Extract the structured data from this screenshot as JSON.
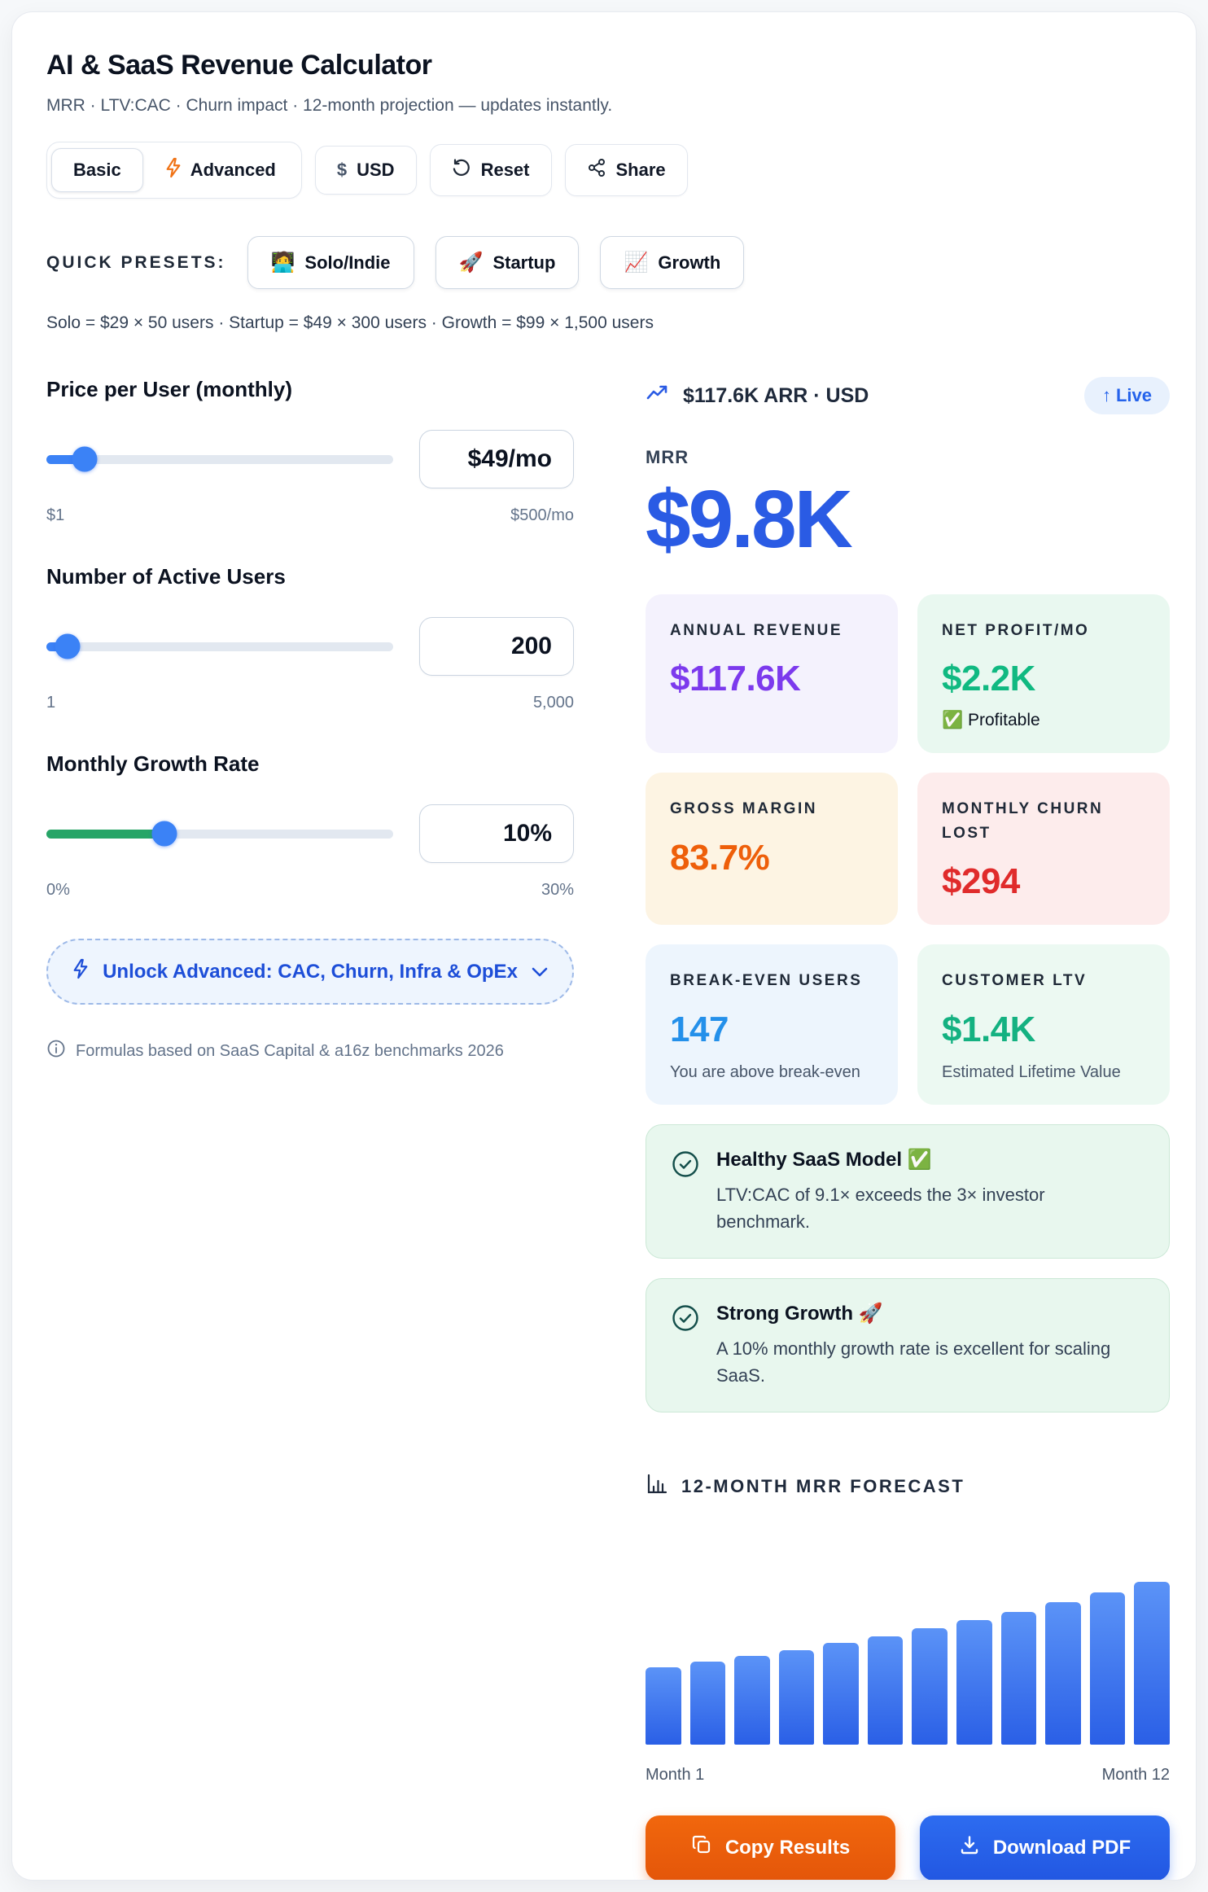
{
  "header": {
    "title": "AI & SaaS Revenue Calculator",
    "subtitle": "MRR · LTV:CAC · Churn impact · 12-month projection — updates instantly."
  },
  "toolbar": {
    "basic_label": "Basic",
    "advanced_label": "Advanced",
    "currency_symbol": "$",
    "currency_label": "USD",
    "reset_label": "Reset",
    "share_label": "Share"
  },
  "presets": {
    "label": "QUICK PRESETS:",
    "items": [
      {
        "emoji": "🧑‍💻",
        "label": "Solo/Indie"
      },
      {
        "emoji": "🚀",
        "label": "Startup"
      },
      {
        "emoji": "📈",
        "label": "Growth"
      }
    ],
    "caption": "Solo = $29 × 50 users · Startup = $49 × 300 users · Growth = $99 × 1,500 users"
  },
  "inputs": {
    "price": {
      "label": "Price per User (monthly)",
      "value": "$49/mo",
      "min": "$1",
      "max": "$500/mo",
      "percent": 11,
      "color": "#3b82f6"
    },
    "users": {
      "label": "Number of Active Users",
      "value": "200",
      "min": "1",
      "max": "5,000",
      "percent": 6,
      "color": "#3b82f6"
    },
    "growth": {
      "label": "Monthly Growth Rate",
      "value": "10%",
      "min": "0%",
      "max": "30%",
      "percent": 34,
      "color": "#27a567"
    }
  },
  "advanced_unlock": {
    "label": "Unlock Advanced: CAC, Churn, Infra & OpEx"
  },
  "footnote": "Formulas based on SaaS Capital & a16z benchmarks 2026",
  "results": {
    "arr_line": "$117.6K ARR · USD",
    "live_badge": {
      "arrow": "↑",
      "label": "Live"
    },
    "mrr_label": "MRR",
    "mrr_value": "$9.8K",
    "cards": [
      {
        "label": "ANNUAL REVENUE",
        "value": "$117.6K",
        "accent": "#7c3aed",
        "bg": "#f4f2fd"
      },
      {
        "label": "NET PROFIT/MO",
        "value": "$2.2K",
        "badge": "✅ Profitable",
        "accent": "#10b981",
        "bg": "#e9f8f0"
      },
      {
        "label": "GROSS MARGIN",
        "value": "83.7%",
        "accent": "#ee5f0a",
        "bg": "#fdf4e3"
      },
      {
        "label": "MONTHLY CHURN LOST",
        "value": "$294",
        "accent": "#e02b2b",
        "bg": "#fdecec"
      },
      {
        "label": "BREAK-EVEN USERS",
        "value": "147",
        "caption": "You are above break-even",
        "accent": "#2490ea",
        "bg": "#edf5fd"
      },
      {
        "label": "CUSTOMER LTV",
        "value": "$1.4K",
        "caption": "Estimated Lifetime Value",
        "accent": "#14b181",
        "bg": "#ecf9f2"
      }
    ],
    "insights": [
      {
        "title": "Healthy SaaS Model",
        "emoji": "✅",
        "body": "LTV:CAC of 9.1× exceeds the 3× investor benchmark."
      },
      {
        "title": "Strong Growth",
        "emoji": "🚀",
        "body": "A 10% monthly growth rate is excellent for scaling SaaS."
      }
    ]
  },
  "chart_data": {
    "type": "bar",
    "title": "12-MONTH MRR FORECAST",
    "categories": [
      "Month 1",
      "Month 2",
      "Month 3",
      "Month 4",
      "Month 5",
      "Month 6",
      "Month 7",
      "Month 8",
      "Month 9",
      "Month 10",
      "Month 11",
      "Month 12"
    ],
    "values": [
      9800,
      10490,
      11220,
      12010,
      12850,
      13750,
      14710,
      15740,
      16840,
      18020,
      19280,
      20630
    ],
    "xlabel_left": "Month 1",
    "xlabel_right": "Month 12",
    "ylim": [
      0,
      20630
    ],
    "grid": false,
    "legend": false,
    "bar_color_top": "#5b93f7",
    "bar_color_bottom": "#2a5fe6"
  },
  "actions": {
    "copy_label": "Copy Results",
    "download_label": "Download PDF"
  }
}
